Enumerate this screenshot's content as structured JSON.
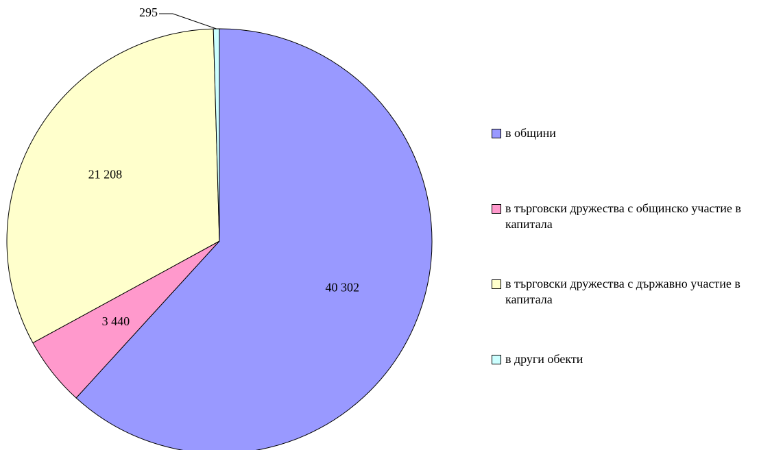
{
  "chart_data": {
    "type": "pie",
    "categories": [
      "в общини",
      "в търговски дружества с общинско участие в капитала",
      "в търговски дружества с държавно участие в капитала",
      "в други обекти"
    ],
    "values": [
      40302,
      3440,
      21208,
      295
    ],
    "value_labels": [
      "40 302",
      "3 440",
      "21 208",
      "295"
    ],
    "colors": [
      "#9999ff",
      "#ff99cc",
      "#ffffcc",
      "#ccffff"
    ],
    "legend": "right"
  }
}
